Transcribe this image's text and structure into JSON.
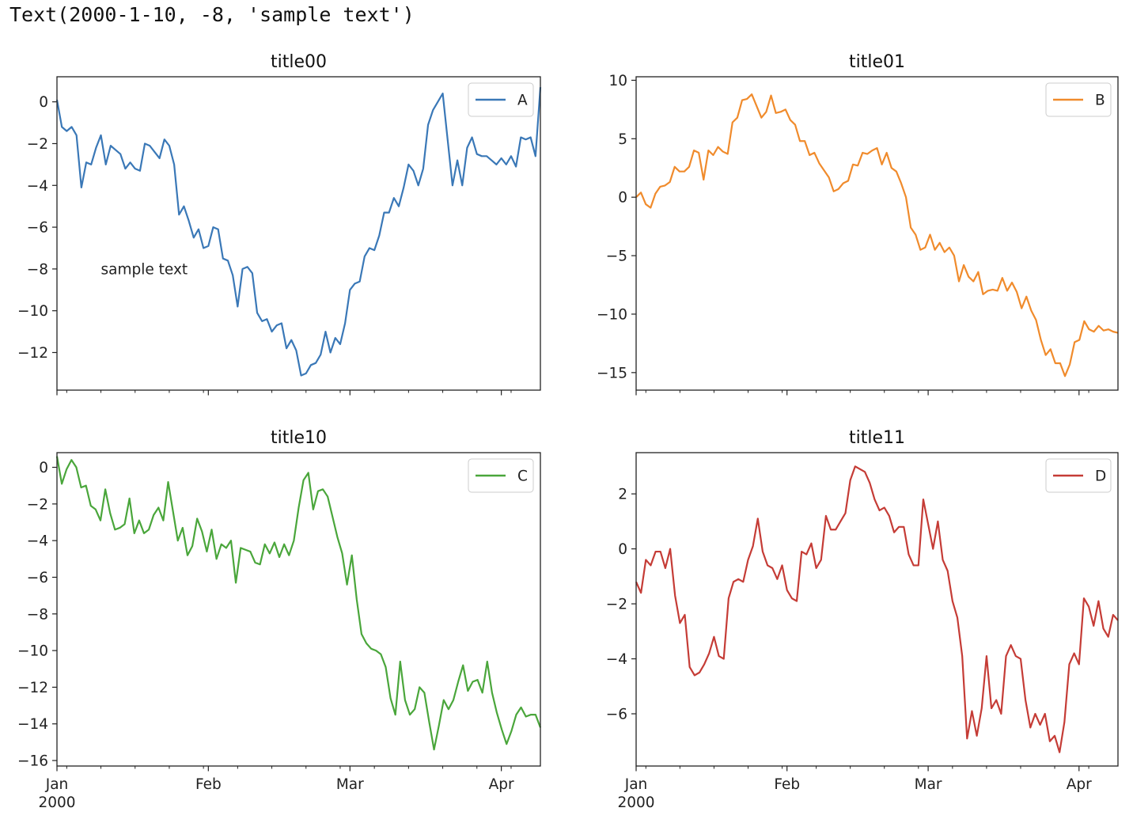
{
  "cell_output": "Text(2000-1-10, -8, 'sample text')",
  "chart_data": [
    {
      "type": "line",
      "title": "title00",
      "xlabel": "",
      "ylabel": "",
      "x_start": "2000-01-01",
      "x_end": "2000-04-09",
      "x_ticks": [
        "Jan",
        "Feb",
        "Mar",
        "Apr"
      ],
      "x_tick_dates": [
        "2000-01-01",
        "2000-02-01",
        "2000-03-01",
        "2000-04-01"
      ],
      "x_year_label": "2000",
      "show_x_labels": false,
      "ylim": [
        -13.8,
        1.2
      ],
      "y_ticks": [
        0,
        -2,
        -4,
        -6,
        -8,
        -10,
        -12
      ],
      "legend": "upper right",
      "color": "#3a78b7",
      "series": [
        {
          "name": "A",
          "values": [
            0.1,
            -1.2,
            -1.4,
            -1.2,
            -1.6,
            -4.1,
            -2.9,
            -3.0,
            -2.2,
            -1.6,
            -3.0,
            -2.1,
            -2.3,
            -2.5,
            -3.2,
            -2.9,
            -3.2,
            -3.3,
            -2.0,
            -2.1,
            -2.4,
            -2.7,
            -1.8,
            -2.1,
            -3.0,
            -5.4,
            -5.0,
            -5.7,
            -6.5,
            -6.1,
            -7.0,
            -6.9,
            -6.0,
            -6.1,
            -7.5,
            -7.6,
            -8.3,
            -9.8,
            -8.0,
            -7.9,
            -8.2,
            -10.1,
            -10.5,
            -10.4,
            -11.0,
            -10.7,
            -10.6,
            -11.8,
            -11.4,
            -11.9,
            -13.1,
            -13.0,
            -12.6,
            -12.5,
            -12.1,
            -11.0,
            -12.0,
            -11.3,
            -11.6,
            -10.6,
            -9.0,
            -8.7,
            -8.6,
            -7.4,
            -7.0,
            -7.1,
            -6.4,
            -5.3,
            -5.3,
            -4.6,
            -5.0,
            -4.1,
            -3.0,
            -3.3,
            -4.0,
            -3.2,
            -1.1,
            -0.4,
            0.0,
            0.4,
            -1.8,
            -4.0,
            -2.8,
            -4.0,
            -2.2,
            -1.7,
            -2.5,
            -2.6,
            -2.6,
            -2.8,
            -3.0,
            -2.7,
            -3.0,
            -2.6,
            -3.1,
            -1.7,
            -1.8,
            -1.7,
            -2.6,
            0.7
          ]
        }
      ],
      "annotations": [
        {
          "text": "sample text",
          "x": "2000-01-10",
          "y": -8
        }
      ]
    },
    {
      "type": "line",
      "title": "title01",
      "xlabel": "",
      "ylabel": "",
      "x_start": "2000-01-01",
      "x_end": "2000-04-09",
      "x_ticks": [
        "Jan",
        "Feb",
        "Mar",
        "Apr"
      ],
      "x_tick_dates": [
        "2000-01-01",
        "2000-02-01",
        "2000-03-01",
        "2000-04-01"
      ],
      "x_year_label": "2000",
      "show_x_labels": false,
      "ylim": [
        -16.5,
        10.3
      ],
      "y_ticks": [
        10,
        5,
        0,
        -5,
        -10,
        -15
      ],
      "legend": "upper right",
      "color": "#f08b2c",
      "series": [
        {
          "name": "B",
          "values": [
            0.0,
            0.4,
            -0.6,
            -0.9,
            0.3,
            0.9,
            1.0,
            1.3,
            2.6,
            2.2,
            2.2,
            2.6,
            4.0,
            3.8,
            1.5,
            4.0,
            3.6,
            4.3,
            3.9,
            3.7,
            6.4,
            6.8,
            8.3,
            8.4,
            8.8,
            7.8,
            6.8,
            7.3,
            8.7,
            7.2,
            7.3,
            7.5,
            6.6,
            6.2,
            4.8,
            4.8,
            3.6,
            3.8,
            2.9,
            2.3,
            1.7,
            0.5,
            0.7,
            1.2,
            1.4,
            2.8,
            2.7,
            3.8,
            3.7,
            4.0,
            4.2,
            2.8,
            3.8,
            2.5,
            2.2,
            1.2,
            0.0,
            -2.6,
            -3.2,
            -4.5,
            -4.3,
            -3.2,
            -4.5,
            -3.9,
            -4.7,
            -4.3,
            -5.0,
            -7.2,
            -5.8,
            -6.8,
            -7.2,
            -6.4,
            -8.3,
            -8.0,
            -7.9,
            -8.0,
            -6.9,
            -8.0,
            -7.3,
            -8.1,
            -9.5,
            -8.5,
            -9.7,
            -10.5,
            -12.2,
            -13.5,
            -13.0,
            -14.2,
            -14.2,
            -15.3,
            -14.3,
            -12.4,
            -12.2,
            -10.6,
            -11.3,
            -11.5,
            -11.0,
            -11.4,
            -11.3,
            -11.5,
            -11.6
          ]
        }
      ],
      "annotations": []
    },
    {
      "type": "line",
      "title": "title10",
      "xlabel": "",
      "ylabel": "",
      "x_start": "2000-01-01",
      "x_end": "2000-04-09",
      "x_ticks": [
        "Jan",
        "Feb",
        "Mar",
        "Apr"
      ],
      "x_tick_dates": [
        "2000-01-01",
        "2000-02-01",
        "2000-03-01",
        "2000-04-01"
      ],
      "x_year_label": "2000",
      "show_x_labels": true,
      "ylim": [
        -16.3,
        0.8
      ],
      "y_ticks": [
        0,
        -2,
        -4,
        -6,
        -8,
        -10,
        -12,
        -14,
        -16
      ],
      "legend": "upper right",
      "color": "#4aa63b",
      "series": [
        {
          "name": "C",
          "values": [
            0.6,
            -0.9,
            -0.1,
            0.4,
            0.0,
            -1.1,
            -1.0,
            -2.1,
            -2.3,
            -2.9,
            -1.2,
            -2.5,
            -3.4,
            -3.3,
            -3.1,
            -1.7,
            -3.6,
            -2.9,
            -3.6,
            -3.4,
            -2.6,
            -2.2,
            -2.9,
            -0.8,
            -2.4,
            -4.0,
            -3.3,
            -4.8,
            -4.3,
            -2.8,
            -3.5,
            -4.6,
            -3.4,
            -5.0,
            -4.2,
            -4.4,
            -4.0,
            -6.3,
            -4.4,
            -4.5,
            -4.6,
            -5.2,
            -5.3,
            -4.2,
            -4.7,
            -4.1,
            -4.9,
            -4.2,
            -4.8,
            -4.0,
            -2.2,
            -0.7,
            -0.3,
            -2.3,
            -1.3,
            -1.2,
            -1.6,
            -2.7,
            -3.8,
            -4.7,
            -6.4,
            -4.8,
            -7.2,
            -9.1,
            -9.6,
            -9.9,
            -10.0,
            -10.2,
            -10.9,
            -12.6,
            -13.5,
            -10.6,
            -12.7,
            -13.5,
            -13.2,
            -12.0,
            -12.3,
            -13.9,
            -15.4,
            -14.1,
            -12.7,
            -13.2,
            -12.7,
            -11.7,
            -10.8,
            -12.2,
            -11.7,
            -11.6,
            -12.3,
            -10.6,
            -12.3,
            -13.4,
            -14.3,
            -15.1,
            -14.4,
            -13.5,
            -13.1,
            -13.6,
            -13.5,
            -13.5,
            -14.2
          ]
        }
      ],
      "annotations": []
    },
    {
      "type": "line",
      "title": "title11",
      "xlabel": "",
      "ylabel": "",
      "x_start": "2000-01-01",
      "x_end": "2000-04-09",
      "x_ticks": [
        "Jan",
        "Feb",
        "Mar",
        "Apr"
      ],
      "x_tick_dates": [
        "2000-01-01",
        "2000-02-01",
        "2000-03-01",
        "2000-04-01"
      ],
      "x_year_label": "2000",
      "show_x_labels": true,
      "ylim": [
        -7.9,
        3.5
      ],
      "y_ticks": [
        2,
        0,
        -2,
        -4,
        -6
      ],
      "legend": "upper right",
      "color": "#c53c36",
      "series": [
        {
          "name": "D",
          "values": [
            -1.2,
            -1.6,
            -0.4,
            -0.6,
            -0.1,
            -0.1,
            -0.7,
            0.0,
            -1.7,
            -2.7,
            -2.4,
            -4.3,
            -4.6,
            -4.5,
            -4.2,
            -3.8,
            -3.2,
            -3.9,
            -4.0,
            -1.8,
            -1.2,
            -1.1,
            -1.2,
            -0.4,
            0.1,
            1.1,
            -0.1,
            -0.6,
            -0.7,
            -1.1,
            -0.6,
            -1.5,
            -1.8,
            -1.9,
            -0.1,
            -0.2,
            0.2,
            -0.7,
            -0.4,
            1.2,
            0.7,
            0.7,
            1.0,
            1.3,
            2.5,
            3.0,
            2.9,
            2.8,
            2.4,
            1.8,
            1.4,
            1.5,
            1.2,
            0.6,
            0.8,
            0.8,
            -0.2,
            -0.6,
            -0.6,
            1.8,
            0.9,
            0.0,
            1.0,
            -0.4,
            -0.8,
            -1.9,
            -2.5,
            -3.9,
            -6.9,
            -5.9,
            -6.8,
            -5.8,
            -3.9,
            -5.8,
            -5.5,
            -6.0,
            -3.9,
            -3.5,
            -3.9,
            -4.0,
            -5.5,
            -6.5,
            -6.0,
            -6.4,
            -6.0,
            -7.0,
            -6.8,
            -7.4,
            -6.3,
            -4.2,
            -3.8,
            -4.2,
            -1.8,
            -2.1,
            -2.8,
            -1.9,
            -2.9,
            -3.2,
            -2.4,
            -2.6
          ]
        }
      ],
      "annotations": []
    }
  ]
}
